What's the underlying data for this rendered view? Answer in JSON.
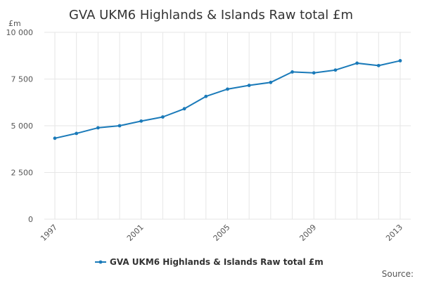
{
  "chart_data": {
    "type": "line",
    "title": "GVA UKM6 Highlands & Islands Raw total £m",
    "y_unit": "£m",
    "x": [
      1997,
      1998,
      1999,
      2000,
      2001,
      2002,
      2003,
      2004,
      2005,
      2006,
      2007,
      2008,
      2009,
      2010,
      2011,
      2012,
      2013
    ],
    "xlim": [
      1997,
      2013
    ],
    "x_ticks": [
      1997,
      2001,
      2005,
      2009,
      2013
    ],
    "x_tick_labels": [
      "1997",
      "2001",
      "2005",
      "2009",
      "2013"
    ],
    "ylim": [
      0,
      10000
    ],
    "y_ticks": [
      0,
      2500,
      5000,
      7500,
      10000
    ],
    "y_tick_labels": [
      "0",
      "2 500",
      "5 000",
      "7 500",
      "10 000"
    ],
    "grid": true,
    "legend_position": "bottom",
    "series": [
      {
        "name": "GVA UKM6 Highlands & Islands Raw total £m",
        "color": "#1a7ab9",
        "values": [
          4330,
          4590,
          4890,
          5000,
          5250,
          5470,
          5910,
          6570,
          6960,
          7160,
          7320,
          7880,
          7830,
          7980,
          8350,
          8220,
          8480
        ]
      }
    ]
  },
  "footer": {
    "source_label": "Source:"
  }
}
